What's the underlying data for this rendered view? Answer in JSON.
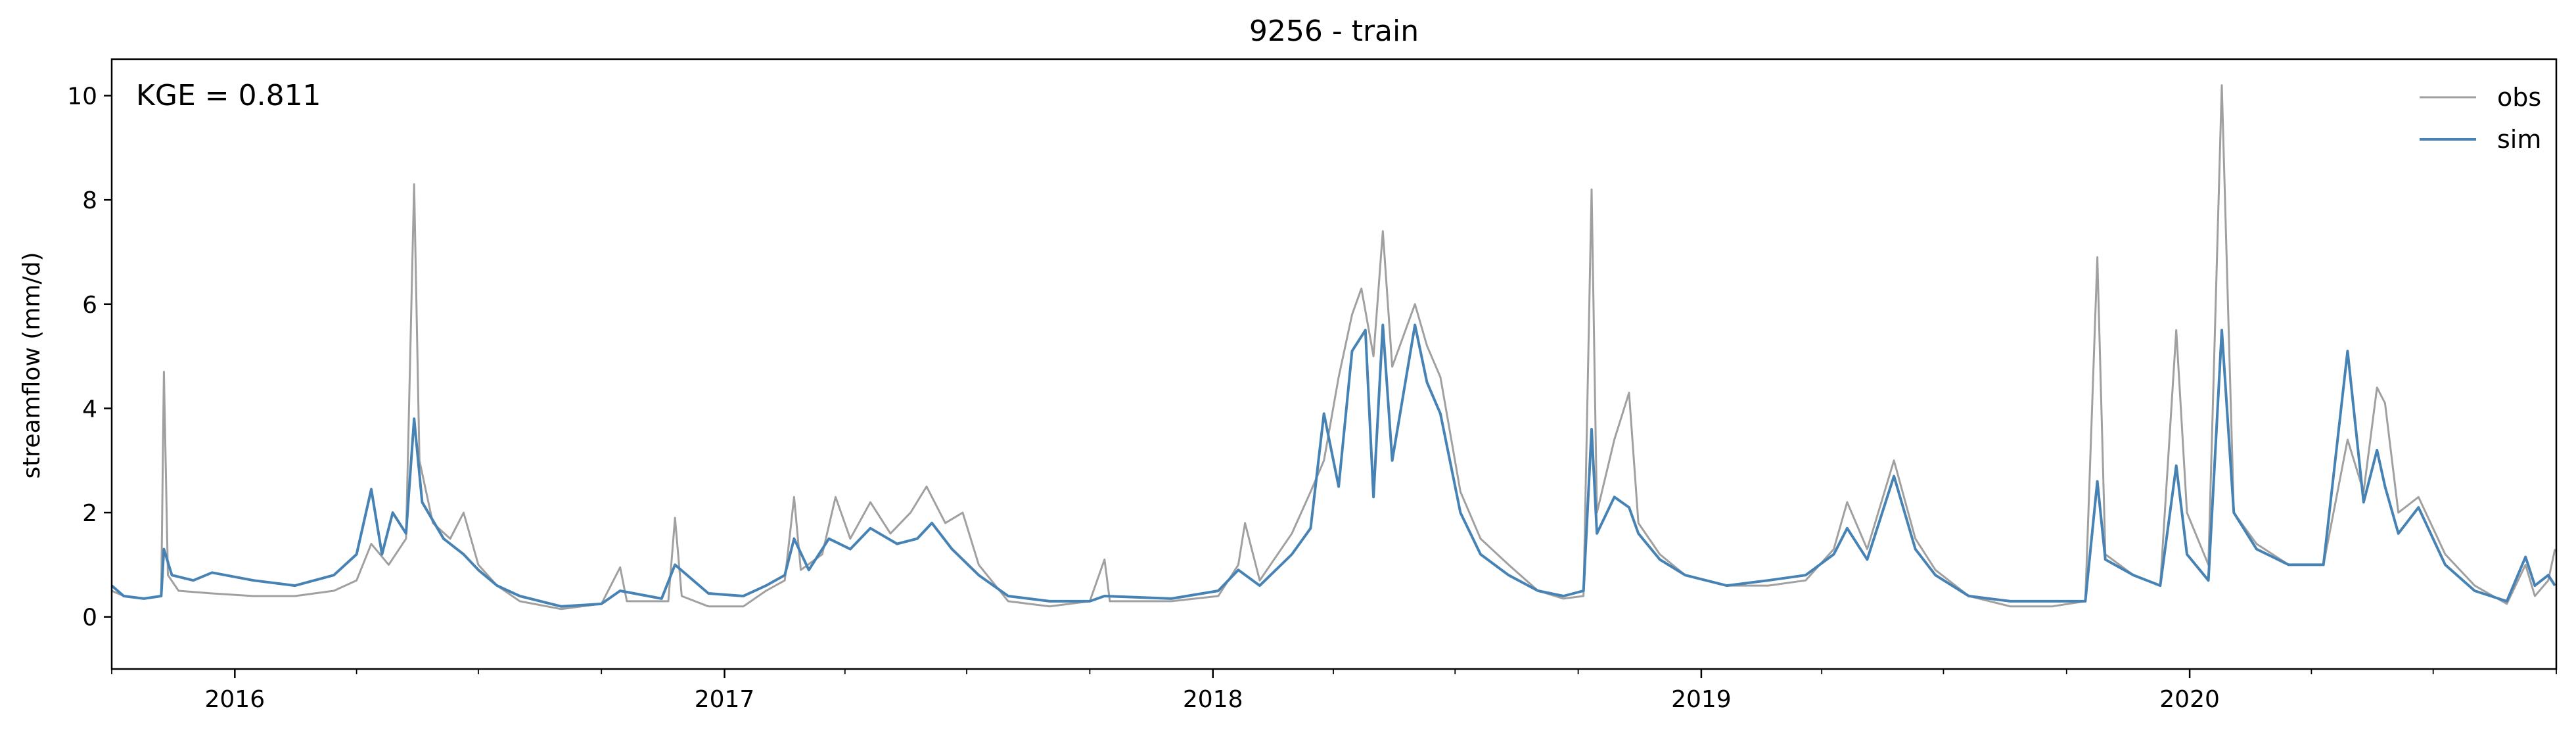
{
  "chart_data": {
    "type": "line",
    "title": "9256 - train",
    "xlabel": "",
    "ylabel": "streamflow (mm/d)",
    "annotation": "KGE = 0.811",
    "xlim": [
      "2015-10-01",
      "2020-10-01"
    ],
    "ylim": [
      -1.0,
      10.7
    ],
    "y_ticks": [
      0,
      2,
      4,
      6,
      8,
      10
    ],
    "x_ticks": [
      {
        "date": "2016-01-01",
        "label": "2016"
      },
      {
        "date": "2017-01-01",
        "label": "2017"
      },
      {
        "date": "2018-01-01",
        "label": "2018"
      },
      {
        "date": "2019-01-01",
        "label": "2019"
      },
      {
        "date": "2020-01-01",
        "label": "2020"
      }
    ],
    "grid": false,
    "legend_position": "top-right",
    "series": [
      {
        "name": "obs",
        "color": "#a0a0a0",
        "points": [
          [
            "2015-10-01",
            0.5
          ],
          [
            "2015-10-10",
            0.4
          ],
          [
            "2015-10-25",
            0.35
          ],
          [
            "2015-11-07",
            0.4
          ],
          [
            "2015-11-09",
            4.7
          ],
          [
            "2015-11-12",
            0.8
          ],
          [
            "2015-11-20",
            0.5
          ],
          [
            "2015-12-15",
            0.45
          ],
          [
            "2016-01-15",
            0.4
          ],
          [
            "2016-02-15",
            0.4
          ],
          [
            "2016-03-15",
            0.5
          ],
          [
            "2016-04-01",
            0.7
          ],
          [
            "2016-04-12",
            1.4
          ],
          [
            "2016-04-25",
            1.0
          ],
          [
            "2016-05-08",
            1.5
          ],
          [
            "2016-05-14",
            8.3
          ],
          [
            "2016-05-18",
            3.0
          ],
          [
            "2016-05-28",
            1.8
          ],
          [
            "2016-06-10",
            1.5
          ],
          [
            "2016-06-20",
            2.0
          ],
          [
            "2016-07-01",
            1.0
          ],
          [
            "2016-07-15",
            0.6
          ],
          [
            "2016-08-01",
            0.3
          ],
          [
            "2016-09-01",
            0.15
          ],
          [
            "2016-10-01",
            0.25
          ],
          [
            "2016-10-15",
            0.95
          ],
          [
            "2016-10-20",
            0.3
          ],
          [
            "2016-11-20",
            0.3
          ],
          [
            "2016-11-25",
            1.9
          ],
          [
            "2016-11-30",
            0.4
          ],
          [
            "2016-12-20",
            0.2
          ],
          [
            "2017-01-15",
            0.2
          ],
          [
            "2017-02-01",
            0.5
          ],
          [
            "2017-02-15",
            0.7
          ],
          [
            "2017-02-22",
            2.3
          ],
          [
            "2017-02-27",
            0.9
          ],
          [
            "2017-03-15",
            1.2
          ],
          [
            "2017-03-25",
            2.3
          ],
          [
            "2017-04-05",
            1.5
          ],
          [
            "2017-04-20",
            2.2
          ],
          [
            "2017-05-05",
            1.6
          ],
          [
            "2017-05-20",
            2.0
          ],
          [
            "2017-06-01",
            2.5
          ],
          [
            "2017-06-15",
            1.8
          ],
          [
            "2017-06-28",
            2.0
          ],
          [
            "2017-07-10",
            1.0
          ],
          [
            "2017-08-01",
            0.3
          ],
          [
            "2017-09-01",
            0.2
          ],
          [
            "2017-10-01",
            0.3
          ],
          [
            "2017-10-12",
            1.1
          ],
          [
            "2017-10-16",
            0.3
          ],
          [
            "2017-12-01",
            0.3
          ],
          [
            "2018-01-05",
            0.4
          ],
          [
            "2018-01-20",
            1.0
          ],
          [
            "2018-01-25",
            1.8
          ],
          [
            "2018-02-05",
            0.7
          ],
          [
            "2018-03-01",
            1.6
          ],
          [
            "2018-03-15",
            2.4
          ],
          [
            "2018-03-25",
            3.0
          ],
          [
            "2018-04-05",
            4.6
          ],
          [
            "2018-04-15",
            5.8
          ],
          [
            "2018-04-22",
            6.3
          ],
          [
            "2018-05-01",
            5.0
          ],
          [
            "2018-05-08",
            7.4
          ],
          [
            "2018-05-15",
            4.8
          ],
          [
            "2018-06-01",
            6.0
          ],
          [
            "2018-06-10",
            5.2
          ],
          [
            "2018-06-20",
            4.6
          ],
          [
            "2018-07-05",
            2.4
          ],
          [
            "2018-07-20",
            1.5
          ],
          [
            "2018-08-10",
            1.0
          ],
          [
            "2018-09-01",
            0.5
          ],
          [
            "2018-09-20",
            0.35
          ],
          [
            "2018-10-05",
            0.4
          ],
          [
            "2018-10-11",
            8.2
          ],
          [
            "2018-10-15",
            2.0
          ],
          [
            "2018-10-28",
            3.4
          ],
          [
            "2018-11-08",
            4.3
          ],
          [
            "2018-11-15",
            1.8
          ],
          [
            "2018-12-01",
            1.2
          ],
          [
            "2018-12-20",
            0.8
          ],
          [
            "2019-01-20",
            0.6
          ],
          [
            "2019-02-20",
            0.6
          ],
          [
            "2019-03-20",
            0.7
          ],
          [
            "2019-04-10",
            1.3
          ],
          [
            "2019-04-20",
            2.2
          ],
          [
            "2019-05-05",
            1.3
          ],
          [
            "2019-05-25",
            3.0
          ],
          [
            "2019-06-10",
            1.5
          ],
          [
            "2019-06-25",
            0.9
          ],
          [
            "2019-07-20",
            0.4
          ],
          [
            "2019-08-20",
            0.2
          ],
          [
            "2019-09-20",
            0.2
          ],
          [
            "2019-10-15",
            0.3
          ],
          [
            "2019-10-24",
            6.9
          ],
          [
            "2019-10-30",
            1.2
          ],
          [
            "2019-11-20",
            0.8
          ],
          [
            "2019-12-10",
            0.6
          ],
          [
            "2019-12-22",
            5.5
          ],
          [
            "2019-12-30",
            2.0
          ],
          [
            "2020-01-15",
            1.0
          ],
          [
            "2020-01-25",
            10.2
          ],
          [
            "2020-02-03",
            2.0
          ],
          [
            "2020-02-20",
            1.4
          ],
          [
            "2020-03-15",
            1.0
          ],
          [
            "2020-04-10",
            1.0
          ],
          [
            "2020-04-28",
            3.4
          ],
          [
            "2020-05-10",
            2.4
          ],
          [
            "2020-05-20",
            4.4
          ],
          [
            "2020-05-26",
            4.1
          ],
          [
            "2020-06-05",
            2.0
          ],
          [
            "2020-06-20",
            2.3
          ],
          [
            "2020-07-10",
            1.2
          ],
          [
            "2020-08-01",
            0.6
          ],
          [
            "2020-08-25",
            0.25
          ],
          [
            "2020-09-08",
            1.0
          ],
          [
            "2020-09-15",
            0.4
          ],
          [
            "2020-09-25",
            0.7
          ],
          [
            "2020-09-30",
            1.3
          ]
        ]
      },
      {
        "name": "sim",
        "color": "#4682b4",
        "points": [
          [
            "2015-10-01",
            0.6
          ],
          [
            "2015-10-10",
            0.4
          ],
          [
            "2015-10-25",
            0.35
          ],
          [
            "2015-11-07",
            0.4
          ],
          [
            "2015-11-09",
            1.3
          ],
          [
            "2015-11-15",
            0.8
          ],
          [
            "2015-12-01",
            0.7
          ],
          [
            "2015-12-15",
            0.85
          ],
          [
            "2016-01-15",
            0.7
          ],
          [
            "2016-02-15",
            0.6
          ],
          [
            "2016-03-15",
            0.8
          ],
          [
            "2016-04-01",
            1.2
          ],
          [
            "2016-04-12",
            2.45
          ],
          [
            "2016-04-20",
            1.2
          ],
          [
            "2016-04-28",
            2.0
          ],
          [
            "2016-05-08",
            1.6
          ],
          [
            "2016-05-14",
            3.8
          ],
          [
            "2016-05-20",
            2.2
          ],
          [
            "2016-06-05",
            1.5
          ],
          [
            "2016-06-20",
            1.2
          ],
          [
            "2016-07-01",
            0.9
          ],
          [
            "2016-07-15",
            0.6
          ],
          [
            "2016-08-01",
            0.4
          ],
          [
            "2016-09-01",
            0.2
          ],
          [
            "2016-10-01",
            0.25
          ],
          [
            "2016-10-15",
            0.5
          ],
          [
            "2016-11-15",
            0.35
          ],
          [
            "2016-11-25",
            1.0
          ],
          [
            "2016-12-20",
            0.45
          ],
          [
            "2017-01-15",
            0.4
          ],
          [
            "2017-02-01",
            0.6
          ],
          [
            "2017-02-15",
            0.8
          ],
          [
            "2017-02-22",
            1.5
          ],
          [
            "2017-03-05",
            0.9
          ],
          [
            "2017-03-20",
            1.5
          ],
          [
            "2017-04-05",
            1.3
          ],
          [
            "2017-04-20",
            1.7
          ],
          [
            "2017-05-10",
            1.4
          ],
          [
            "2017-05-25",
            1.5
          ],
          [
            "2017-06-05",
            1.8
          ],
          [
            "2017-06-20",
            1.3
          ],
          [
            "2017-07-10",
            0.8
          ],
          [
            "2017-08-01",
            0.4
          ],
          [
            "2017-09-01",
            0.3
          ],
          [
            "2017-10-01",
            0.3
          ],
          [
            "2017-10-12",
            0.4
          ],
          [
            "2017-12-01",
            0.35
          ],
          [
            "2018-01-05",
            0.5
          ],
          [
            "2018-01-20",
            0.9
          ],
          [
            "2018-02-05",
            0.6
          ],
          [
            "2018-03-01",
            1.2
          ],
          [
            "2018-03-15",
            1.7
          ],
          [
            "2018-03-25",
            3.9
          ],
          [
            "2018-04-05",
            2.5
          ],
          [
            "2018-04-15",
            5.1
          ],
          [
            "2018-04-25",
            5.5
          ],
          [
            "2018-05-01",
            2.3
          ],
          [
            "2018-05-08",
            5.6
          ],
          [
            "2018-05-15",
            3.0
          ],
          [
            "2018-06-01",
            5.6
          ],
          [
            "2018-06-10",
            4.5
          ],
          [
            "2018-06-20",
            3.9
          ],
          [
            "2018-07-05",
            2.0
          ],
          [
            "2018-07-20",
            1.2
          ],
          [
            "2018-08-10",
            0.8
          ],
          [
            "2018-09-01",
            0.5
          ],
          [
            "2018-09-20",
            0.4
          ],
          [
            "2018-10-05",
            0.5
          ],
          [
            "2018-10-11",
            3.6
          ],
          [
            "2018-10-15",
            1.6
          ],
          [
            "2018-10-28",
            2.3
          ],
          [
            "2018-11-08",
            2.1
          ],
          [
            "2018-11-15",
            1.6
          ],
          [
            "2018-12-01",
            1.1
          ],
          [
            "2018-12-20",
            0.8
          ],
          [
            "2019-01-20",
            0.6
          ],
          [
            "2019-02-20",
            0.7
          ],
          [
            "2019-03-20",
            0.8
          ],
          [
            "2019-04-10",
            1.2
          ],
          [
            "2019-04-20",
            1.7
          ],
          [
            "2019-05-05",
            1.1
          ],
          [
            "2019-05-25",
            2.7
          ],
          [
            "2019-06-10",
            1.3
          ],
          [
            "2019-06-25",
            0.8
          ],
          [
            "2019-07-20",
            0.4
          ],
          [
            "2019-08-20",
            0.3
          ],
          [
            "2019-09-20",
            0.3
          ],
          [
            "2019-10-15",
            0.3
          ],
          [
            "2019-10-24",
            2.6
          ],
          [
            "2019-10-30",
            1.1
          ],
          [
            "2019-11-20",
            0.8
          ],
          [
            "2019-12-10",
            0.6
          ],
          [
            "2019-12-22",
            2.9
          ],
          [
            "2019-12-30",
            1.2
          ],
          [
            "2020-01-15",
            0.7
          ],
          [
            "2020-01-25",
            5.5
          ],
          [
            "2020-02-03",
            2.0
          ],
          [
            "2020-02-20",
            1.3
          ],
          [
            "2020-03-15",
            1.0
          ],
          [
            "2020-04-10",
            1.0
          ],
          [
            "2020-04-28",
            5.1
          ],
          [
            "2020-05-10",
            2.2
          ],
          [
            "2020-05-20",
            3.2
          ],
          [
            "2020-05-26",
            2.5
          ],
          [
            "2020-06-05",
            1.6
          ],
          [
            "2020-06-20",
            2.1
          ],
          [
            "2020-07-10",
            1.0
          ],
          [
            "2020-08-01",
            0.5
          ],
          [
            "2020-08-25",
            0.3
          ],
          [
            "2020-09-08",
            1.15
          ],
          [
            "2020-09-15",
            0.6
          ],
          [
            "2020-09-25",
            0.8
          ],
          [
            "2020-09-30",
            0.6
          ]
        ]
      }
    ]
  }
}
